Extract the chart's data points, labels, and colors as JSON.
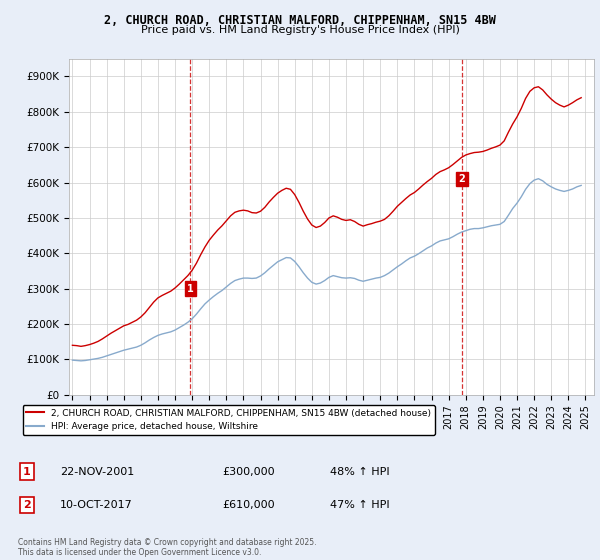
{
  "title_line1": "2, CHURCH ROAD, CHRISTIAN MALFORD, CHIPPENHAM, SN15 4BW",
  "title_line2": "Price paid vs. HM Land Registry's House Price Index (HPI)",
  "background_color": "#e8eef8",
  "plot_bg_color": "#ffffff",
  "ylim": [
    0,
    950000
  ],
  "yticks": [
    0,
    100000,
    200000,
    300000,
    400000,
    500000,
    600000,
    700000,
    800000,
    900000
  ],
  "ytick_labels": [
    "£0",
    "£100K",
    "£200K",
    "£300K",
    "£400K",
    "£500K",
    "£600K",
    "£700K",
    "£800K",
    "£900K"
  ],
  "xmin": 1994.8,
  "xmax": 2025.5,
  "transaction1_date": 2001.9,
  "transaction1_price": 300000,
  "transaction2_date": 2017.78,
  "transaction2_price": 610000,
  "vline_color": "#cc0000",
  "red_line_color": "#cc0000",
  "blue_line_color": "#88aacc",
  "legend_label_red": "2, CHURCH ROAD, CHRISTIAN MALFORD, CHIPPENHAM, SN15 4BW (detached house)",
  "legend_label_blue": "HPI: Average price, detached house, Wiltshire",
  "footer_text": "Contains HM Land Registry data © Crown copyright and database right 2025.\nThis data is licensed under the Open Government Licence v3.0.",
  "table_row1": [
    "1",
    "22-NOV-2001",
    "£300,000",
    "48% ↑ HPI"
  ],
  "table_row2": [
    "2",
    "10-OCT-2017",
    "£610,000",
    "47% ↑ HPI"
  ],
  "hpi_data": {
    "years": [
      1995.0,
      1995.25,
      1995.5,
      1995.75,
      1996.0,
      1996.25,
      1996.5,
      1996.75,
      1997.0,
      1997.25,
      1997.5,
      1997.75,
      1998.0,
      1998.25,
      1998.5,
      1998.75,
      1999.0,
      1999.25,
      1999.5,
      1999.75,
      2000.0,
      2000.25,
      2000.5,
      2000.75,
      2001.0,
      2001.25,
      2001.5,
      2001.75,
      2002.0,
      2002.25,
      2002.5,
      2002.75,
      2003.0,
      2003.25,
      2003.5,
      2003.75,
      2004.0,
      2004.25,
      2004.5,
      2004.75,
      2005.0,
      2005.25,
      2005.5,
      2005.75,
      2006.0,
      2006.25,
      2006.5,
      2006.75,
      2007.0,
      2007.25,
      2007.5,
      2007.75,
      2008.0,
      2008.25,
      2008.5,
      2008.75,
      2009.0,
      2009.25,
      2009.5,
      2009.75,
      2010.0,
      2010.25,
      2010.5,
      2010.75,
      2011.0,
      2011.25,
      2011.5,
      2011.75,
      2012.0,
      2012.25,
      2012.5,
      2012.75,
      2013.0,
      2013.25,
      2013.5,
      2013.75,
      2014.0,
      2014.25,
      2014.5,
      2014.75,
      2015.0,
      2015.25,
      2015.5,
      2015.75,
      2016.0,
      2016.25,
      2016.5,
      2016.75,
      2017.0,
      2017.25,
      2017.5,
      2017.75,
      2018.0,
      2018.25,
      2018.5,
      2018.75,
      2019.0,
      2019.25,
      2019.5,
      2019.75,
      2020.0,
      2020.25,
      2020.5,
      2020.75,
      2021.0,
      2021.25,
      2021.5,
      2021.75,
      2022.0,
      2022.25,
      2022.5,
      2022.75,
      2023.0,
      2023.25,
      2023.5,
      2023.75,
      2024.0,
      2024.25,
      2024.5,
      2024.75
    ],
    "hpi_values": [
      98000,
      97000,
      96000,
      97000,
      99000,
      101000,
      103000,
      106000,
      110000,
      114000,
      118000,
      122000,
      126000,
      129000,
      132000,
      135000,
      140000,
      147000,
      155000,
      162000,
      168000,
      172000,
      175000,
      178000,
      183000,
      190000,
      197000,
      205000,
      215000,
      228000,
      243000,
      257000,
      268000,
      278000,
      287000,
      295000,
      305000,
      315000,
      323000,
      327000,
      330000,
      330000,
      329000,
      330000,
      336000,
      345000,
      356000,
      366000,
      376000,
      382000,
      388000,
      387000,
      377000,
      362000,
      345000,
      330000,
      318000,
      313000,
      316000,
      323000,
      332000,
      337000,
      334000,
      331000,
      330000,
      331000,
      329000,
      324000,
      321000,
      324000,
      327000,
      330000,
      332000,
      337000,
      344000,
      353000,
      362000,
      370000,
      379000,
      387000,
      392000,
      399000,
      407000,
      415000,
      421000,
      429000,
      435000,
      438000,
      441000,
      447000,
      454000,
      460000,
      464000,
      468000,
      470000,
      470000,
      472000,
      475000,
      478000,
      480000,
      482000,
      490000,
      508000,
      527000,
      542000,
      560000,
      581000,
      597000,
      607000,
      611000,
      605000,
      595000,
      588000,
      582000,
      578000,
      575000,
      578000,
      582000,
      588000,
      592000
    ],
    "red_values": [
      140000,
      139000,
      137000,
      139000,
      142000,
      146000,
      151000,
      158000,
      166000,
      174000,
      181000,
      188000,
      195000,
      199000,
      205000,
      211000,
      220000,
      232000,
      247000,
      262000,
      274000,
      281000,
      287000,
      293000,
      302000,
      313000,
      325000,
      337000,
      352000,
      372000,
      396000,
      418000,
      437000,
      452000,
      466000,
      478000,
      492000,
      506000,
      516000,
      520000,
      522000,
      520000,
      515000,
      514000,
      519000,
      530000,
      545000,
      558000,
      570000,
      578000,
      584000,
      581000,
      566000,
      544000,
      519000,
      497000,
      480000,
      473000,
      477000,
      487000,
      500000,
      506000,
      502000,
      496000,
      493000,
      495000,
      490000,
      482000,
      477000,
      481000,
      484000,
      488000,
      491000,
      496000,
      506000,
      519000,
      533000,
      544000,
      555000,
      565000,
      572000,
      582000,
      593000,
      603000,
      612000,
      623000,
      631000,
      636000,
      642000,
      651000,
      661000,
      671000,
      678000,
      682000,
      685000,
      686000,
      688000,
      692000,
      697000,
      701000,
      706000,
      718000,
      743000,
      766000,
      786000,
      810000,
      838000,
      858000,
      868000,
      871000,
      862000,
      848000,
      836000,
      826000,
      819000,
      814000,
      819000,
      826000,
      834000,
      840000
    ]
  }
}
